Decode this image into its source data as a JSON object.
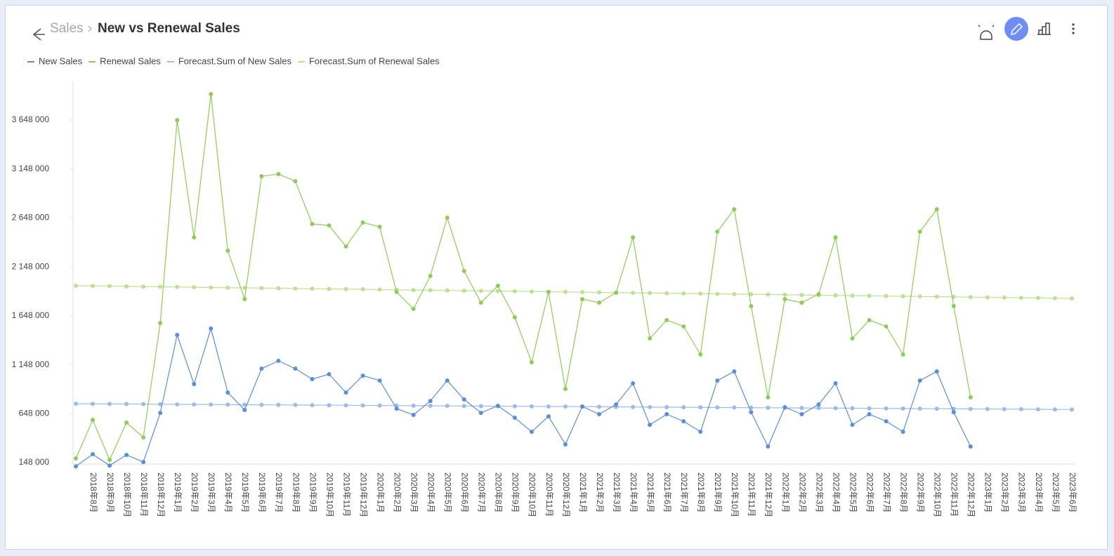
{
  "header": {
    "breadcrumb": "Sales",
    "title": "New vs Renewal Sales"
  },
  "chart_data": {
    "type": "line",
    "legend": "top-left",
    "grid": false,
    "categories": [
      null,
      "2018年8月",
      "2018年9月",
      "2018年10月",
      "2018年11月",
      "2018年12月",
      "2019年1月",
      "2019年2月",
      "2019年3月",
      "2019年4月",
      "2019年5月",
      "2019年6月",
      "2019年7月",
      "2019年8月",
      "2019年9月",
      "2019年10月",
      "2019年11月",
      "2019年12月",
      "2020年1月",
      "2020年2月",
      "2020年3月",
      "2020年4月",
      "2020年5月",
      "2020年6月",
      "2020年7月",
      "2020年8月",
      "2020年9月",
      "2020年10月",
      "2020年11月",
      "2020年12月",
      "2021年1月",
      "2021年2月",
      "2021年3月",
      "2021年4月",
      "2021年5月",
      "2021年6月",
      "2021年7月",
      "2021年8月",
      "2021年9月",
      "2021年10月",
      "2021年11月",
      "2021年12月",
      "2022年1月",
      "2022年2月",
      "2022年3月",
      "2022年4月",
      "2022年5月",
      "2022年6月",
      "2022年7月",
      "2022年8月",
      "2022年9月",
      "2022年10月",
      "2022年11月",
      "2022年12月",
      "2023年1月",
      "2023年2月",
      "2023年3月",
      "2023年4月",
      "2023年5月",
      "2023年6月"
    ],
    "ylim": [
      134000,
      4043000
    ],
    "yticks": [
      {
        "value": 148000,
        "label": "148 000"
      },
      {
        "value": 648000,
        "label": "648 000"
      },
      {
        "value": 1148000,
        "label": "1 148 000"
      },
      {
        "value": 1648000,
        "label": "1 648 000"
      },
      {
        "value": 2148000,
        "label": "2 148 000"
      },
      {
        "value": 2648000,
        "label": "2 648 000"
      },
      {
        "value": 3148000,
        "label": "3 148 000"
      },
      {
        "value": 3648000,
        "label": "3 648 000"
      }
    ],
    "series": [
      {
        "name": "New Sales",
        "color": "#5b8ed6",
        "values": [
          110000,
          234000,
          119000,
          227000,
          155000,
          657000,
          1453000,
          951000,
          1518000,
          865000,
          686000,
          1109000,
          1188000,
          1109000,
          1002000,
          1052000,
          865000,
          1037000,
          987000,
          700000,
          636000,
          779000,
          987000,
          794000,
          657000,
          729000,
          607000,
          464000,
          621000,
          335000,
          722000,
          643000,
          743000,
          959000,
          535000,
          643000,
          571000,
          464000,
          987000,
          1080000,
          664000,
          313000,
          715000,
          643000,
          743000,
          959000,
          535000,
          643000,
          571000,
          464000,
          987000,
          1080000,
          664000,
          313000,
          null,
          null,
          null,
          null,
          null,
          null
        ]
      },
      {
        "name": "Renewal Sales",
        "color": "#8fcb58",
        "values": [
          191000,
          585000,
          177000,
          557000,
          406000,
          1575000,
          3648000,
          2450000,
          3914000,
          2314000,
          1819000,
          3075000,
          3096000,
          3024000,
          2587000,
          2572000,
          2357000,
          2601000,
          2558000,
          1891000,
          1719000,
          2056000,
          2651000,
          2106000,
          1783000,
          1956000,
          1633000,
          1174000,
          1891000,
          901000,
          1819000,
          1783000,
          1884000,
          2450000,
          1418000,
          1604000,
          1540000,
          1253000,
          2508000,
          2737000,
          1748000,
          815000,
          1819000,
          1783000,
          1870000,
          2450000,
          1418000,
          1604000,
          1540000,
          1253000,
          2508000,
          2737000,
          1748000,
          815000,
          null,
          null,
          null,
          null,
          null,
          null
        ]
      },
      {
        "name": "Forecast.Sum of New Sales",
        "color": "#9cbbe8",
        "values": [
          750000,
          749000,
          748000,
          747000,
          746000,
          745000,
          744000,
          743000,
          742000,
          741000,
          740000,
          739000,
          738000,
          737000,
          736000,
          735000,
          734000,
          733000,
          732000,
          731000,
          730000,
          729000,
          728000,
          727000,
          726000,
          725000,
          724000,
          723000,
          722000,
          721000,
          720000,
          719000,
          718000,
          717000,
          716000,
          715000,
          714000,
          713000,
          712000,
          711000,
          710000,
          709000,
          708000,
          707000,
          706000,
          705000,
          704000,
          703000,
          702000,
          701000,
          700000,
          699000,
          698000,
          697000,
          696000,
          695000,
          694000,
          693000,
          692000,
          691000
        ]
      },
      {
        "name": "Forecast.Sum of Renewal Sales",
        "color": "#bde193",
        "values": [
          1956000,
          1954000,
          1952000,
          1949000,
          1947000,
          1945000,
          1943000,
          1941000,
          1938000,
          1936000,
          1934000,
          1932000,
          1930000,
          1927000,
          1925000,
          1923000,
          1921000,
          1919000,
          1916000,
          1914000,
          1912000,
          1910000,
          1908000,
          1905000,
          1903000,
          1901000,
          1899000,
          1897000,
          1894000,
          1892000,
          1890000,
          1888000,
          1886000,
          1883000,
          1881000,
          1879000,
          1877000,
          1875000,
          1872000,
          1870000,
          1868000,
          1866000,
          1864000,
          1861000,
          1859000,
          1857000,
          1855000,
          1853000,
          1850000,
          1848000,
          1846000,
          1844000,
          1842000,
          1839000,
          1837000,
          1835000,
          1833000,
          1831000,
          1828000,
          1826000
        ]
      }
    ]
  }
}
